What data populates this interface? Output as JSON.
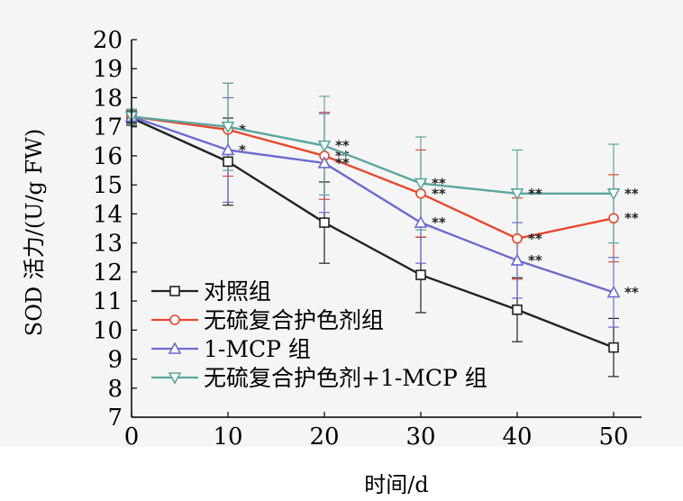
{
  "chart_data": {
    "type": "line",
    "xlabel": "时间/d",
    "ylabel": "SOD 活力/(U/g FW)",
    "xlim": [
      0,
      50
    ],
    "ylim": [
      7,
      20
    ],
    "x_ticks": [
      "0",
      "10",
      "20",
      "30",
      "40",
      "50"
    ],
    "y_ticks": [
      "7",
      "8",
      "9",
      "10",
      "11",
      "12",
      "13",
      "14",
      "15",
      "16",
      "17",
      "18",
      "19",
      "20"
    ],
    "x": [
      0,
      10,
      20,
      30,
      40,
      50
    ],
    "legend_position": "bottom-left",
    "series": [
      {
        "name": "对照组",
        "color": "#222222",
        "marker": "square",
        "values": [
          17.3,
          15.8,
          13.7,
          11.9,
          10.7,
          9.4
        ],
        "errors": [
          0.25,
          1.5,
          1.4,
          1.3,
          1.1,
          1.0
        ],
        "significance": [
          "",
          "",
          "",
          "",
          "",
          ""
        ]
      },
      {
        "name": "无硫复合护色剂组",
        "color": "#e8472e",
        "marker": "circle",
        "values": [
          17.35,
          16.9,
          16.0,
          14.7,
          13.15,
          13.85
        ],
        "errors": [
          0.25,
          1.6,
          1.5,
          1.5,
          1.4,
          1.5
        ],
        "significance": [
          "",
          "*",
          "**",
          "**",
          "**",
          "**"
        ]
      },
      {
        "name": "1-MCP 组",
        "color": "#6b6bd0",
        "marker": "triangle-up",
        "values": [
          17.35,
          16.2,
          15.75,
          13.7,
          12.4,
          11.3
        ],
        "errors": [
          0.25,
          1.8,
          1.7,
          1.4,
          1.3,
          1.2
        ],
        "significance": [
          "",
          "*",
          "**",
          "**",
          "**",
          "**"
        ]
      },
      {
        "name": "无硫复合护色剂+1-MCP 组",
        "color": "#5aa7a0",
        "marker": "triangle-down",
        "values": [
          17.35,
          17.0,
          16.35,
          15.05,
          14.7,
          14.7
        ],
        "errors": [
          0.25,
          1.5,
          1.7,
          1.6,
          1.5,
          1.7
        ],
        "significance": [
          "",
          "",
          "**",
          "**",
          "**",
          "**"
        ]
      }
    ]
  }
}
